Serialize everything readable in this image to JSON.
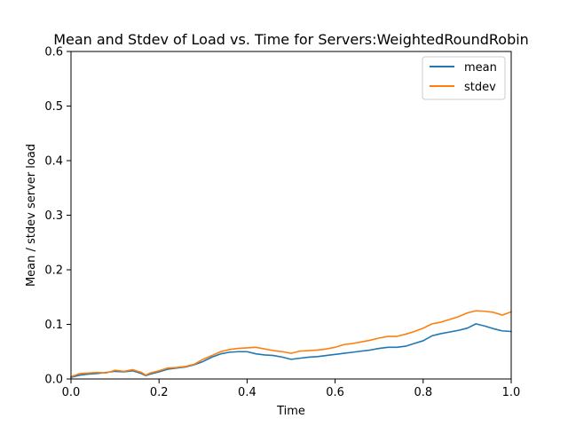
{
  "chart_data": {
    "type": "line",
    "title": "Mean and Stdev of Load vs. Time for Servers:WeightedRoundRobin",
    "xlabel": "Time",
    "ylabel": "Mean / stdev server load",
    "xlim": [
      0.0,
      1.0
    ],
    "ylim": [
      0.0,
      0.6
    ],
    "xticks": [
      0.0,
      0.2,
      0.4,
      0.6,
      0.8,
      1.0
    ],
    "xtick_labels": [
      "0.0",
      "0.2",
      "0.4",
      "0.6",
      "0.8",
      "1.0"
    ],
    "yticks": [
      0.0,
      0.1,
      0.2,
      0.3,
      0.4,
      0.5,
      0.6
    ],
    "ytick_labels": [
      "0.0",
      "0.1",
      "0.2",
      "0.3",
      "0.4",
      "0.5",
      "0.6"
    ],
    "grid": false,
    "legend_position": "top-right",
    "x": [
      0.0,
      0.02,
      0.04,
      0.06,
      0.08,
      0.1,
      0.12,
      0.14,
      0.16,
      0.17,
      0.18,
      0.2,
      0.22,
      0.24,
      0.26,
      0.28,
      0.3,
      0.32,
      0.34,
      0.36,
      0.38,
      0.4,
      0.42,
      0.44,
      0.46,
      0.48,
      0.5,
      0.52,
      0.54,
      0.56,
      0.58,
      0.6,
      0.62,
      0.64,
      0.66,
      0.68,
      0.7,
      0.72,
      0.74,
      0.76,
      0.78,
      0.8,
      0.82,
      0.84,
      0.86,
      0.88,
      0.9,
      0.92,
      0.94,
      0.96,
      0.98,
      1.0
    ],
    "series": [
      {
        "name": "mean",
        "color": "#1f77b4",
        "values": [
          0.003,
          0.007,
          0.009,
          0.01,
          0.012,
          0.014,
          0.013,
          0.015,
          0.01,
          0.006,
          0.009,
          0.013,
          0.018,
          0.02,
          0.022,
          0.026,
          0.032,
          0.04,
          0.046,
          0.049,
          0.05,
          0.05,
          0.046,
          0.044,
          0.043,
          0.04,
          0.036,
          0.038,
          0.04,
          0.041,
          0.043,
          0.045,
          0.047,
          0.049,
          0.051,
          0.053,
          0.056,
          0.058,
          0.058,
          0.06,
          0.065,
          0.07,
          0.079,
          0.083,
          0.086,
          0.089,
          0.093,
          0.101,
          0.097,
          0.092,
          0.088,
          0.087
        ]
      },
      {
        "name": "stdev",
        "color": "#ff7f0e",
        "values": [
          0.004,
          0.01,
          0.011,
          0.012,
          0.011,
          0.016,
          0.014,
          0.017,
          0.012,
          0.007,
          0.011,
          0.015,
          0.02,
          0.021,
          0.023,
          0.027,
          0.036,
          0.043,
          0.05,
          0.054,
          0.056,
          0.057,
          0.058,
          0.055,
          0.052,
          0.05,
          0.047,
          0.051,
          0.052,
          0.053,
          0.055,
          0.058,
          0.063,
          0.065,
          0.068,
          0.071,
          0.075,
          0.078,
          0.078,
          0.082,
          0.087,
          0.093,
          0.101,
          0.104,
          0.109,
          0.114,
          0.121,
          0.125,
          0.124,
          0.122,
          0.117,
          0.123
        ]
      }
    ]
  }
}
